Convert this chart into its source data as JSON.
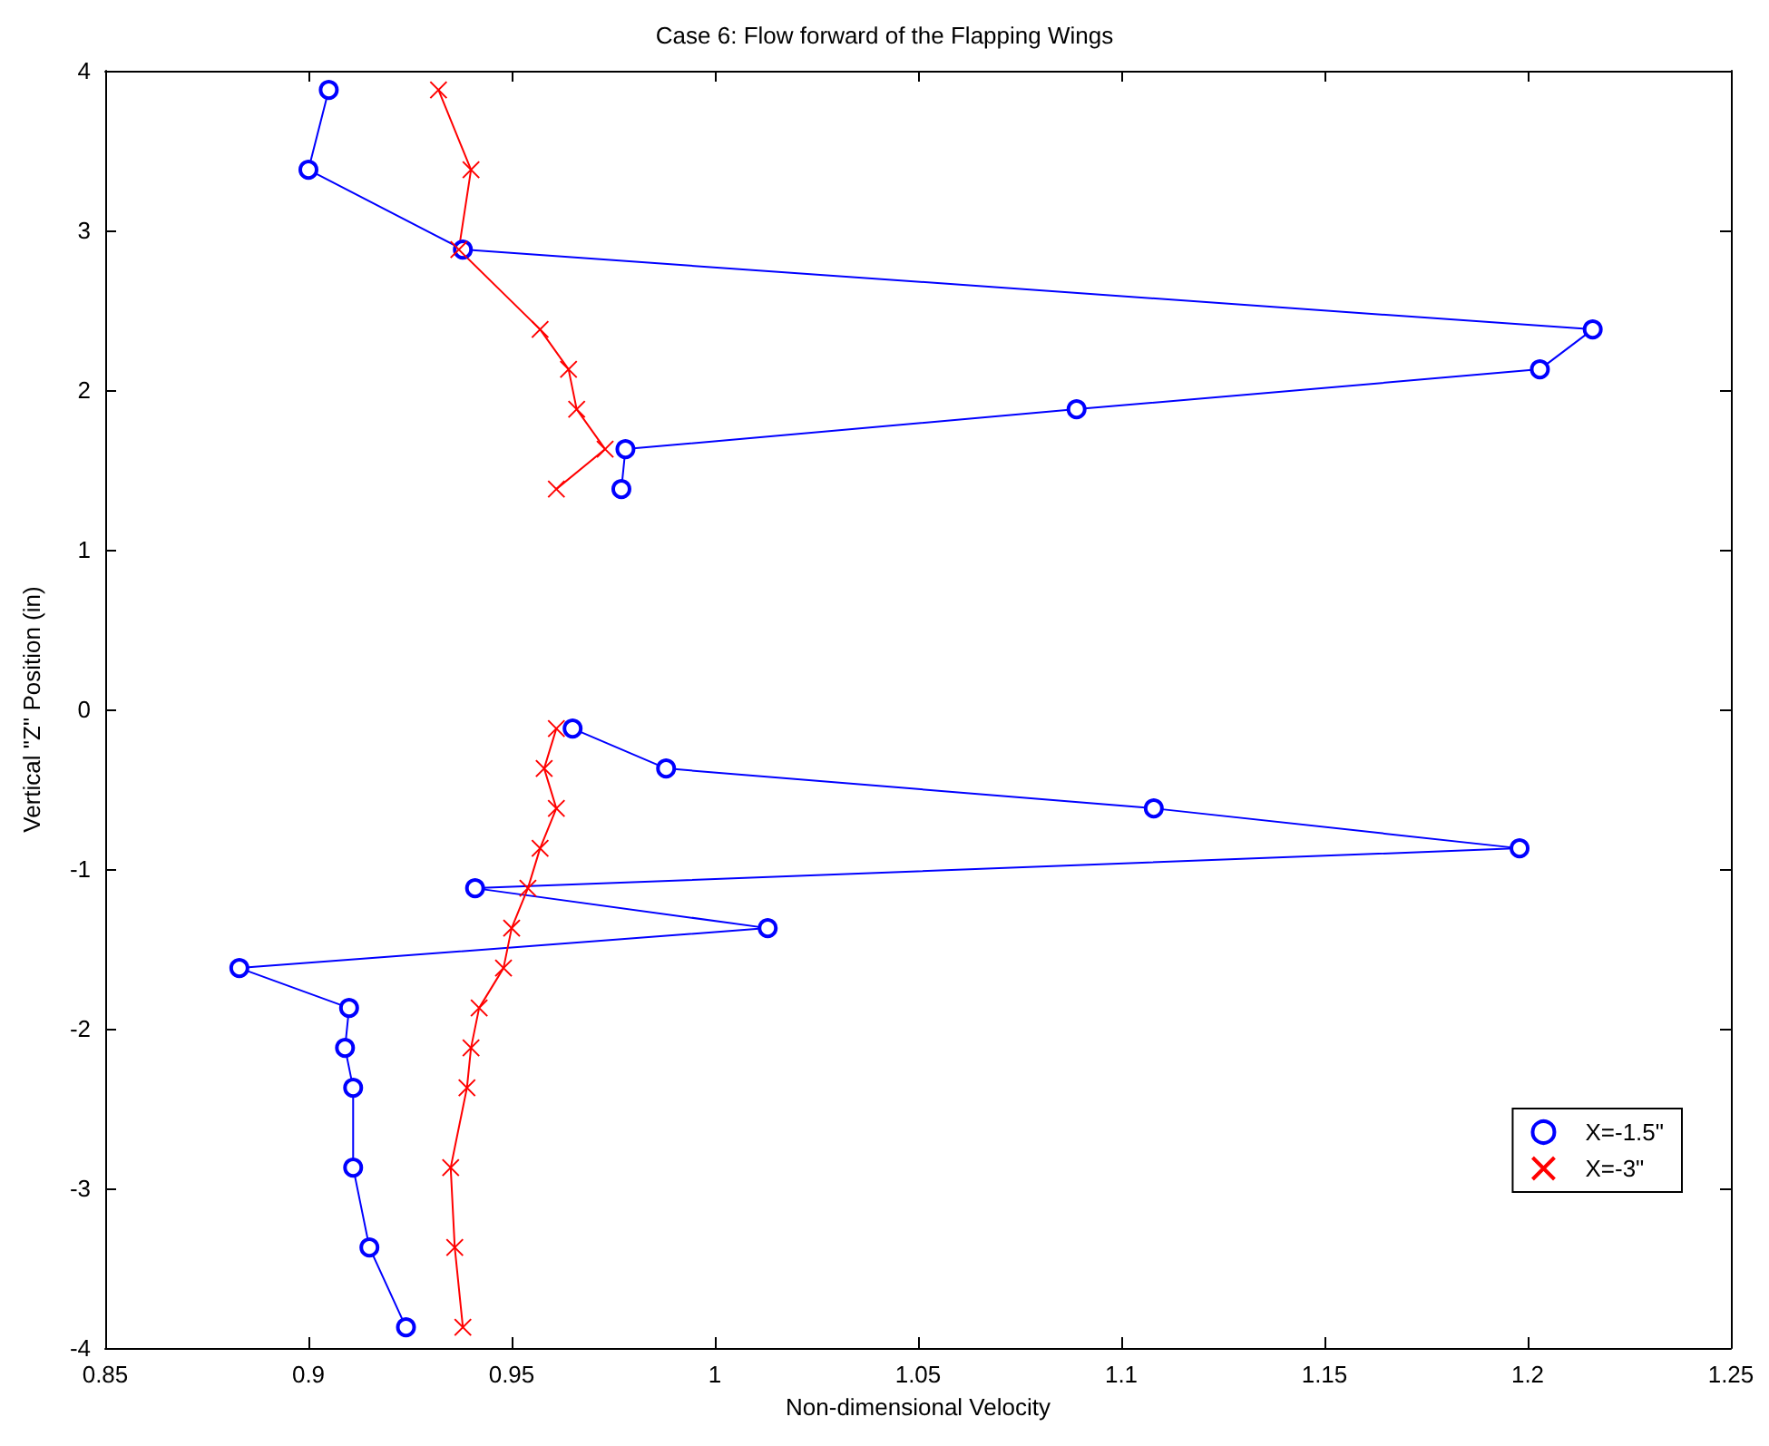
{
  "chart_data": {
    "type": "line",
    "title": "Case 6: Flow forward of the Flapping Wings",
    "xlabel": "Non-dimensional Velocity",
    "ylabel": "Vertical \"Z\" Position (in)",
    "xlim": [
      0.85,
      1.25
    ],
    "xticks": [
      0.85,
      0.9,
      0.95,
      1,
      1.05,
      1.1,
      1.15,
      1.2,
      1.25
    ],
    "ylim": [
      -4,
      4
    ],
    "yticks": [
      -4,
      -3,
      -2,
      -1,
      0,
      1,
      2,
      3,
      4
    ],
    "grid": false,
    "legend": "bottom right",
    "series": [
      {
        "name": "X=-1.5\"",
        "color": "#0000ff",
        "marker": "circle",
        "x": [
          0.905,
          0.9,
          0.938,
          1.216,
          1.203,
          1.089,
          0.978,
          0.977,
          null,
          0.965,
          0.988,
          1.108,
          1.198,
          0.941,
          1.013,
          0.883,
          0.91,
          0.909,
          0.911,
          0.911,
          0.915,
          0.924
        ],
        "values": [
          3.88,
          3.38,
          2.88,
          2.38,
          2.13,
          1.88,
          1.63,
          1.38,
          null,
          -0.12,
          -0.37,
          -0.62,
          -0.87,
          -1.12,
          -1.37,
          -1.62,
          -1.87,
          -2.12,
          -2.37,
          -2.87,
          -3.37,
          -3.87
        ]
      },
      {
        "name": "X=-3\"",
        "color": "#ff0000",
        "marker": "cross",
        "x": [
          0.932,
          0.94,
          0.937,
          0.957,
          0.964,
          0.966,
          0.973,
          0.961,
          null,
          0.961,
          0.958,
          0.961,
          0.957,
          0.954,
          0.95,
          0.948,
          0.942,
          0.94,
          0.939,
          0.935,
          0.936,
          0.938
        ],
        "values": [
          3.88,
          3.38,
          2.88,
          2.38,
          2.13,
          1.88,
          1.63,
          1.38,
          null,
          -0.12,
          -0.37,
          -0.62,
          -0.87,
          -1.12,
          -1.37,
          -1.62,
          -1.87,
          -2.12,
          -2.37,
          -2.87,
          -3.37,
          -3.87
        ]
      }
    ]
  }
}
